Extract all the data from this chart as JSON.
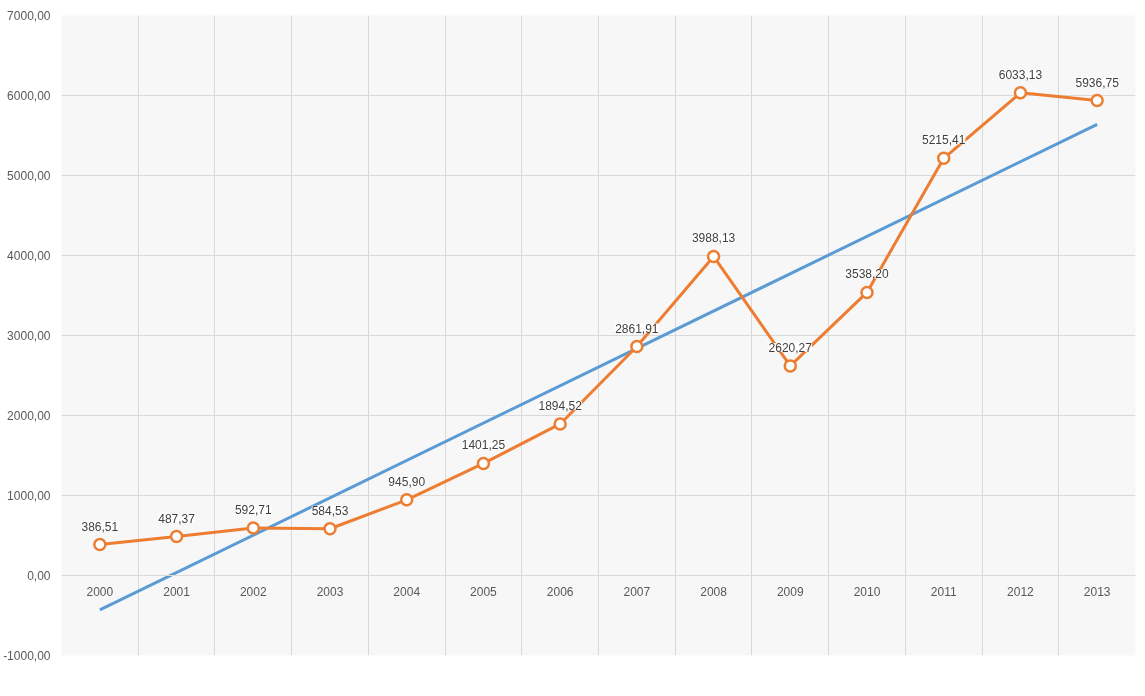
{
  "chart_data": {
    "type": "line",
    "x": [
      2000,
      2001,
      2002,
      2003,
      2004,
      2005,
      2006,
      2007,
      2008,
      2009,
      2010,
      2011,
      2012,
      2013
    ],
    "series": [
      {
        "color": "#ed7d31",
        "marker": "circle",
        "values": [
          386.51,
          487.37,
          592.71,
          584.53,
          945.9,
          1401.25,
          1894.52,
          2861.91,
          3988.13,
          2620.27,
          3538.2,
          5215.41,
          6033.13,
          5936.75
        ],
        "value_labels": [
          "386,51",
          "487,37",
          "592,71",
          "584,53",
          "945,90",
          "1401,25",
          "1894,52",
          "2861,91",
          "3988,13",
          "2620,27",
          "3538,20",
          "5215,41",
          "6033,13",
          "5936,75"
        ]
      },
      {
        "type": "line",
        "color": "#5b9bd5",
        "marker": "none",
        "x": [
          2000,
          2013
        ],
        "values": [
          -430,
          5640
        ]
      }
    ],
    "xlim": [
      1999.5,
      2013.5
    ],
    "xticks": [
      2000,
      2001,
      2002,
      2003,
      2004,
      2005,
      2006,
      2007,
      2008,
      2009,
      2010,
      2011,
      2012,
      2013
    ],
    "ylim": [
      -1000,
      7000
    ],
    "yticks": [
      {
        "value": -1000,
        "label": "-1000,00"
      },
      {
        "value": 0,
        "label": "0,00"
      },
      {
        "value": 1000,
        "label": "1000,00"
      },
      {
        "value": 2000,
        "label": "2000,00"
      },
      {
        "value": 3000,
        "label": "3000,00"
      },
      {
        "value": 4000,
        "label": "4000,00"
      },
      {
        "value": 5000,
        "label": "5000,00"
      },
      {
        "value": 6000,
        "label": "6000,00"
      },
      {
        "value": 7000,
        "label": "7000,00"
      }
    ],
    "grid": true,
    "line_style": "solid"
  }
}
